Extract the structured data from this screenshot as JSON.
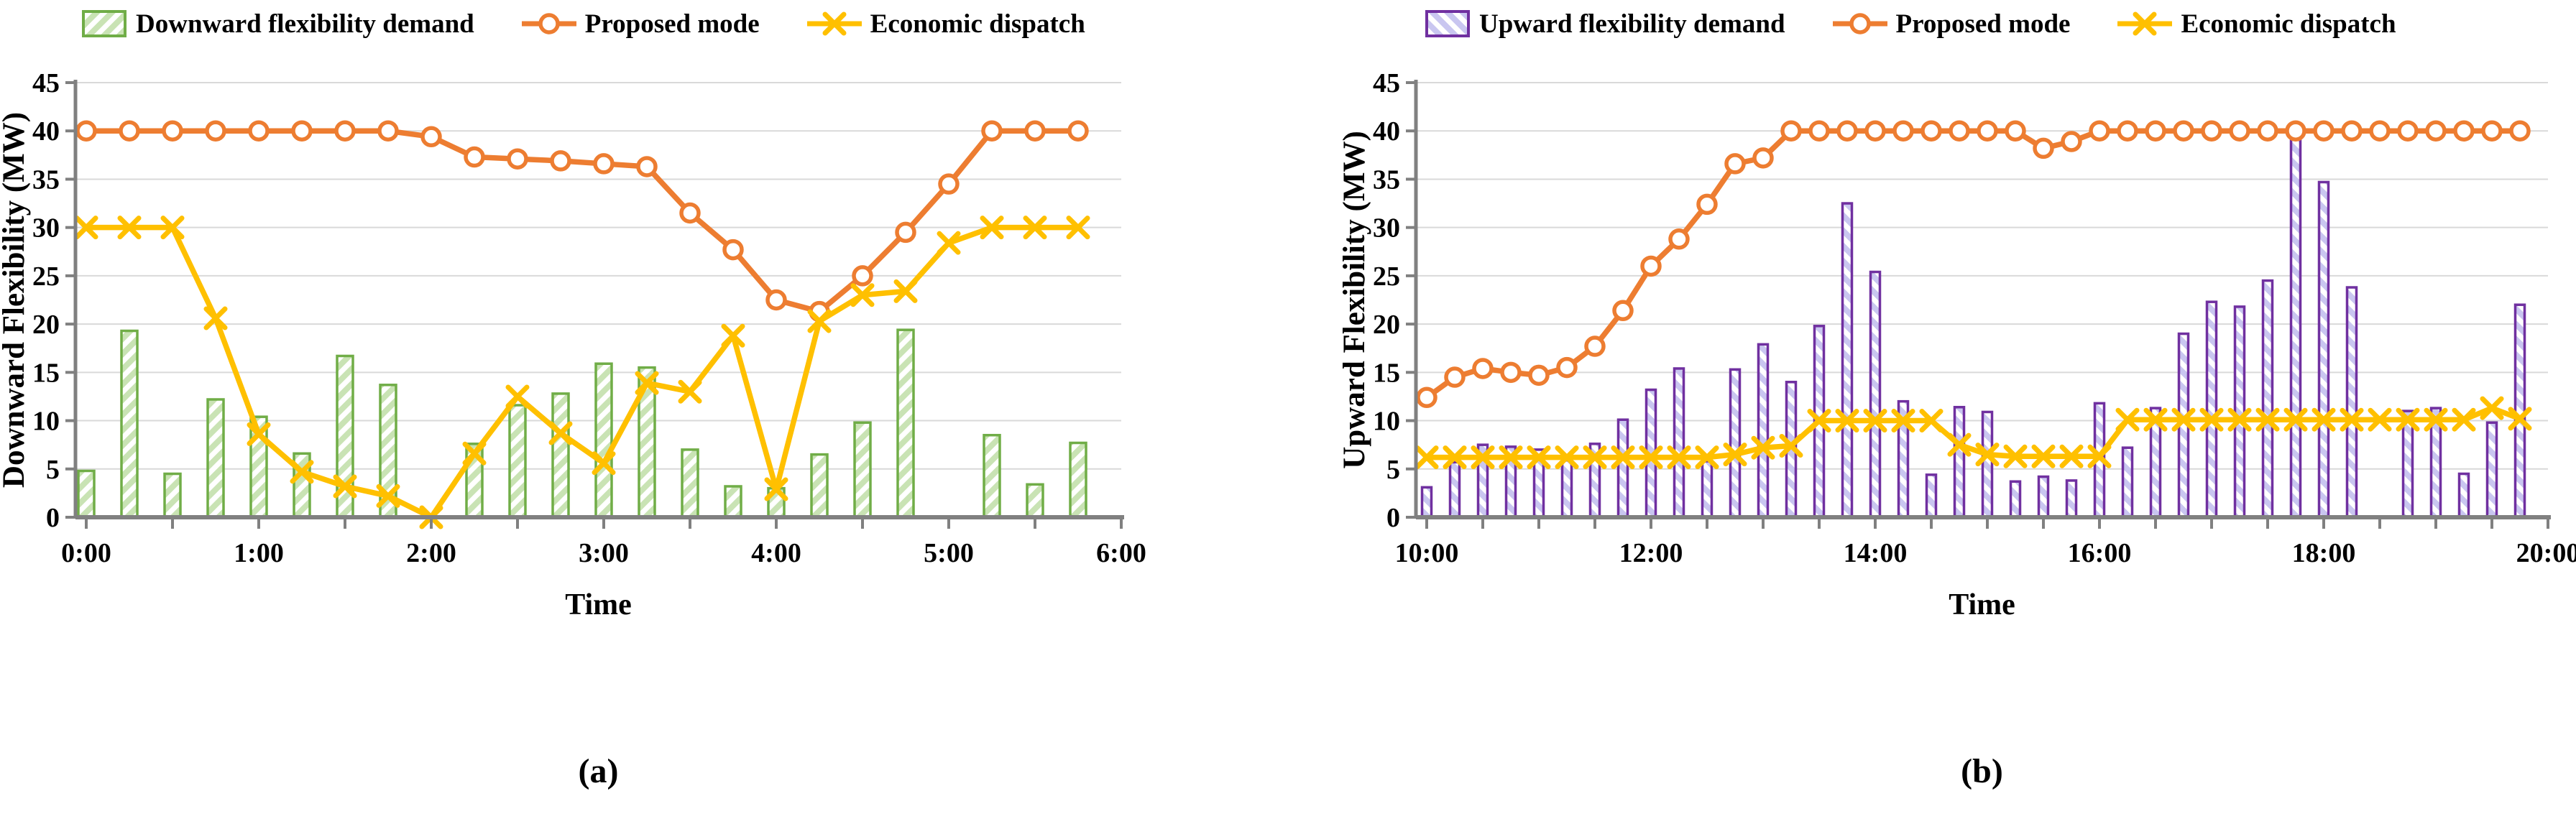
{
  "colors": {
    "proposed": "#ED7D31",
    "economic": "#FFC000",
    "bar_border_a": "#70AD47",
    "bar_hatch_a": "#C9E3B4",
    "bar_border_b": "#7030A0",
    "bar_hatch_b": "#C9C6F0",
    "gridline": "#D9D9D9",
    "axis": "#808080",
    "text": "#000000"
  },
  "charts": [
    {
      "id": "a",
      "caption": "(a)",
      "y_axis_title": "Downward Flexibility (MW)",
      "x_axis_title": "Time",
      "legend": [
        {
          "type": "bar",
          "label": "Downward flexibility demand"
        },
        {
          "type": "line-circle",
          "label": "Proposed mode"
        },
        {
          "type": "line-x",
          "label": "Economic dispatch"
        }
      ],
      "chart_data": {
        "type": "bar",
        "subtype": "combo-bar-line",
        "xlabel": "Time",
        "ylabel": "Downward Flexibility (MW)",
        "ylim": [
          0,
          45
        ],
        "y_tick_step": 5,
        "x_tick_labels": [
          "0:00",
          "1:00",
          "2:00",
          "3:00",
          "4:00",
          "5:00",
          "6:00"
        ],
        "grid": "horizontal",
        "legend_position": "top",
        "categories": [
          "0:00",
          "0:15",
          "0:30",
          "0:45",
          "1:00",
          "1:15",
          "1:30",
          "1:45",
          "2:00",
          "2:15",
          "2:30",
          "2:45",
          "3:00",
          "3:15",
          "3:30",
          "3:45",
          "4:00",
          "4:15",
          "4:30",
          "4:45",
          "5:00",
          "5:15",
          "5:30",
          "5:45"
        ],
        "series": [
          {
            "name": "Downward flexibility demand",
            "type": "bar",
            "values": [
              4.8,
              19.3,
              4.5,
              12.2,
              10.4,
              6.6,
              16.7,
              13.7,
              0,
              7.6,
              11.6,
              12.8,
              15.9,
              15.5,
              7.0,
              3.2,
              3.0,
              6.5,
              9.8,
              19.4,
              0,
              8.5,
              3.4,
              7.7
            ]
          },
          {
            "name": "Proposed mode",
            "type": "line",
            "marker": "circle",
            "values": [
              40,
              40,
              40,
              40,
              40,
              40,
              40,
              40,
              39.4,
              37.3,
              37.1,
              36.9,
              36.6,
              36.3,
              31.5,
              27.7,
              22.5,
              21.3,
              25.0,
              29.5,
              34.5,
              40,
              40,
              40
            ]
          },
          {
            "name": "Economic dispatch",
            "type": "line",
            "marker": "x",
            "values": [
              30,
              30,
              30,
              20.6,
              8.6,
              4.7,
              3.2,
              2.2,
              0,
              6.6,
              12.5,
              8.7,
              5.6,
              13.9,
              13.0,
              18.8,
              2.9,
              20.3,
              23.0,
              23.4,
              28.4,
              30,
              30,
              30
            ]
          }
        ]
      }
    },
    {
      "id": "b",
      "caption": "(b)",
      "y_axis_title": "Upward Flexibility (MW)",
      "x_axis_title": "Time",
      "legend": [
        {
          "type": "bar",
          "label": "Upward flexibility demand"
        },
        {
          "type": "line-circle",
          "label": "Proposed mode"
        },
        {
          "type": "line-x",
          "label": "Economic dispatch"
        }
      ],
      "chart_data": {
        "type": "bar",
        "subtype": "combo-bar-line",
        "xlabel": "Time",
        "ylabel": "Upward Flexibility (MW)",
        "ylim": [
          0,
          45
        ],
        "y_tick_step": 5,
        "x_tick_labels": [
          "10:00",
          "12:00",
          "14:00",
          "16:00",
          "18:00",
          "20:00"
        ],
        "grid": "horizontal",
        "legend_position": "top",
        "categories": [
          "10:00",
          "10:15",
          "10:30",
          "10:45",
          "11:00",
          "11:15",
          "11:30",
          "11:45",
          "12:00",
          "12:15",
          "12:30",
          "12:45",
          "13:00",
          "13:15",
          "13:30",
          "13:45",
          "14:00",
          "14:15",
          "14:30",
          "14:45",
          "15:00",
          "15:15",
          "15:30",
          "15:45",
          "16:00",
          "16:15",
          "16:30",
          "16:45",
          "17:00",
          "17:15",
          "17:30",
          "17:45",
          "18:00",
          "18:15",
          "18:30",
          "18:45",
          "19:00",
          "19:15",
          "19:30",
          "19:45"
        ],
        "series": [
          {
            "name": "Upward flexibility demand",
            "type": "bar",
            "values": [
              3.1,
              5.7,
              7.5,
              7.3,
              7.0,
              5.9,
              7.6,
              10.1,
              13.2,
              15.4,
              5.8,
              15.3,
              17.9,
              14.0,
              19.8,
              32.5,
              25.4,
              12.0,
              4.4,
              11.4,
              10.9,
              3.7,
              4.2,
              3.8,
              11.8,
              7.2,
              11.3,
              19.0,
              22.3,
              21.8,
              24.5,
              39.2,
              34.7,
              23.8,
              0,
              11.0,
              11.3,
              4.5,
              9.8,
              22.0
            ]
          },
          {
            "name": "Proposed mode",
            "type": "line",
            "marker": "circle",
            "values": [
              12.4,
              14.5,
              15.4,
              15.0,
              14.7,
              15.5,
              17.7,
              21.4,
              26.0,
              28.8,
              32.4,
              36.6,
              37.2,
              40,
              40,
              40,
              40,
              40,
              40,
              40,
              40,
              40,
              38.2,
              38.9,
              40,
              40,
              40,
              40,
              40,
              40,
              40,
              40,
              40,
              40,
              40,
              40,
              40,
              40,
              40,
              40
            ]
          },
          {
            "name": "Economic dispatch",
            "type": "line",
            "marker": "x",
            "values": [
              6.2,
              6.2,
              6.2,
              6.2,
              6.2,
              6.2,
              6.2,
              6.2,
              6.2,
              6.2,
              6.2,
              6.5,
              7.2,
              7.4,
              10.0,
              10.0,
              10.0,
              10.0,
              10.0,
              7.5,
              6.5,
              6.3,
              6.3,
              6.3,
              6.3,
              10.1,
              10.1,
              10.1,
              10.1,
              10.1,
              10.1,
              10.1,
              10.1,
              10.1,
              10.1,
              10.1,
              10.1,
              10.1,
              11.3,
              10.2
            ]
          }
        ]
      }
    }
  ]
}
